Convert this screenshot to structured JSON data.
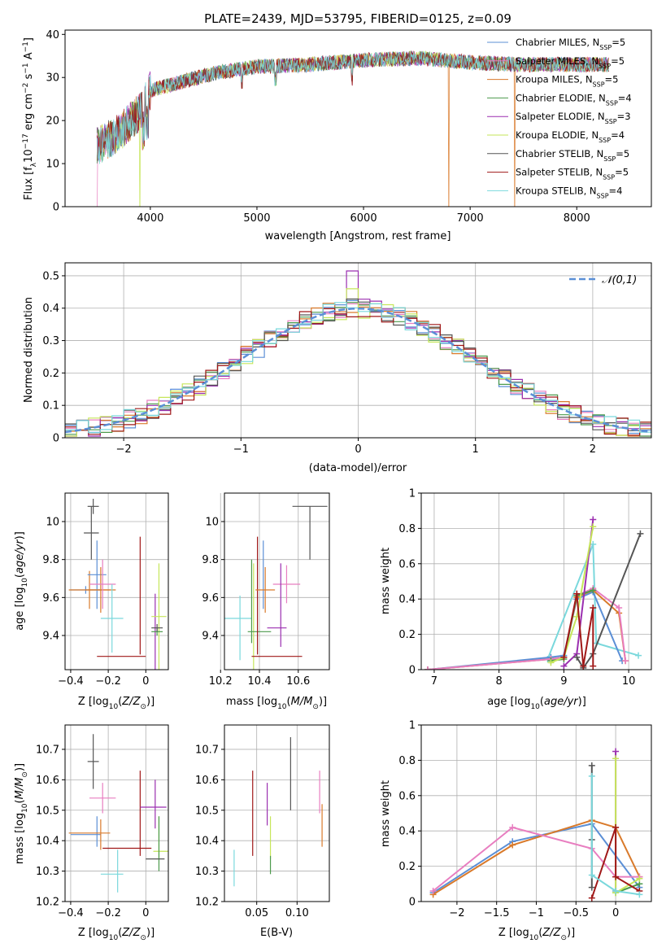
{
  "figure_title": "PLATE=2439, MJD=53795, FIBERID=0125, z=0.09",
  "colors": {
    "Chabrier MILES": "#5b8fd6",
    "Salpeter MILES": "#e87ec0",
    "Kroupa MILES": "#d97a2b",
    "Chabrier ELODIE": "#4c9a4c",
    "Salpeter ELODIE": "#9b2fb0",
    "Kroupa ELODIE": "#c6e65a",
    "Chabrier STELIB": "#555555",
    "Salpeter STELIB": "#a01818",
    "Kroupa STELIB": "#7ad8dc"
  },
  "chart_data": [
    {
      "id": "spectrum",
      "type": "line",
      "xlabel": "wavelength [Angstrom, rest frame]",
      "ylabel": "Flux [f_λ10^-17 erg cm^-2 s^-1 A^-1]",
      "xlim": [
        3200,
        8700
      ],
      "ylim": [
        0,
        41
      ],
      "xticks": [
        4000,
        5000,
        6000,
        7000,
        8000
      ],
      "yticks": [
        0,
        10,
        20,
        30,
        40
      ],
      "legend_position": "right",
      "series": [
        {
          "name": "Chabrier MILES, N_SSP=5",
          "base": "Chabrier MILES"
        },
        {
          "name": "Salpeter MILES, N_SSP=5",
          "base": "Salpeter MILES"
        },
        {
          "name": "Kroupa MILES, N_SSP=5",
          "base": "Kroupa MILES"
        },
        {
          "name": "Chabrier ELODIE, N_SSP=4",
          "base": "Chabrier ELODIE"
        },
        {
          "name": "Salpeter ELODIE, N_SSP=3",
          "base": "Salpeter ELODIE"
        },
        {
          "name": "Kroupa ELODIE, N_SSP=4",
          "base": "Kroupa ELODIE"
        },
        {
          "name": "Chabrier STELIB, N_SSP=5",
          "base": "Chabrier STELIB"
        },
        {
          "name": "Salpeter STELIB, N_SSP=5",
          "base": "Salpeter STELIB"
        },
        {
          "name": "Kroupa STELIB, N_SSP=4",
          "base": "Kroupa STELIB"
        }
      ],
      "continuum": [
        [
          3500,
          14
        ],
        [
          3700,
          17
        ],
        [
          3900,
          22
        ],
        [
          4000,
          27
        ],
        [
          4300,
          29
        ],
        [
          4600,
          31
        ],
        [
          5000,
          32.5
        ],
        [
          5500,
          33
        ],
        [
          6000,
          34
        ],
        [
          6500,
          34.5
        ],
        [
          7000,
          33.5
        ],
        [
          7500,
          33
        ],
        [
          8000,
          33
        ],
        [
          8300,
          33
        ]
      ],
      "dropouts": [
        {
          "series": "Salpeter MILES",
          "x": 3500
        },
        {
          "series": "Kroupa ELODIE",
          "x": 3900
        },
        {
          "series": "Kroupa MILES",
          "x": 6800
        },
        {
          "series": "Kroupa MILES",
          "x": 7420
        }
      ]
    },
    {
      "id": "residuals",
      "type": "histogram",
      "xlabel": "(data-model)/error",
      "ylabel": "Normed distribution",
      "xlim": [
        -2.5,
        2.5
      ],
      "ylim": [
        0,
        0.54
      ],
      "xticks": [
        -2,
        -1,
        0,
        1,
        2
      ],
      "yticks": [
        0.0,
        0.1,
        0.2,
        0.3,
        0.4,
        0.5
      ],
      "bin_width": 0.1,
      "reference": {
        "name": "𝒩(0,1)",
        "mean": 0,
        "sigma": 1
      },
      "legend_position": "top-right",
      "peak_values": {
        "Salpeter ELODIE": 0.515,
        "Kroupa ELODIE": 0.46
      }
    },
    {
      "id": "age_vs_Z",
      "type": "errorbar",
      "xlabel": "Z [log10(Z/Z⊙)]",
      "ylabel": "age [log10(age/yr)]",
      "xlim": [
        -0.43,
        0.12
      ],
      "ylim": [
        9.22,
        10.15
      ],
      "xticks": [
        -0.4,
        -0.2,
        0.0
      ],
      "yticks": [
        9.4,
        9.6,
        9.8,
        10.0
      ],
      "points": [
        {
          "series": "Chabrier STELIB",
          "x": -0.28,
          "xerr": 0.03,
          "y": 10.08,
          "yerr": 0.04
        },
        {
          "series": "Chabrier MILES",
          "x": -0.32,
          "xerr": 0.08,
          "y": 9.64,
          "yerr": 0.02
        },
        {
          "series": "Kroupa MILES",
          "x": -0.3,
          "xerr": 0.11,
          "y": 9.64,
          "yerr": 0.1
        },
        {
          "series": "Chabrier MILES",
          "x": -0.26,
          "xerr": 0.05,
          "y": 9.72,
          "yerr": 0.18
        },
        {
          "series": "Kroupa MILES",
          "x": -0.24,
          "xerr": 0.08,
          "y": 9.64,
          "yerr": 0.12
        },
        {
          "series": "Salpeter MILES",
          "x": -0.23,
          "xerr": 0.07,
          "y": 9.67,
          "yerr": 0.13
        },
        {
          "series": "Chabrier STELIB",
          "x": -0.29,
          "xerr": 0.04,
          "y": 9.94,
          "yerr": 0.14
        },
        {
          "series": "Kroupa STELIB",
          "x": -0.18,
          "xerr": 0.06,
          "y": 9.49,
          "yerr": 0.18
        },
        {
          "series": "Salpeter STELIB",
          "x": -0.13,
          "xerr": 0.13,
          "y": 9.29,
          "yerr": 0.0
        },
        {
          "series": "Salpeter STELIB",
          "x": -0.03,
          "xerr": 0.0,
          "y": 9.61,
          "yerr": 0.31
        },
        {
          "series": "Salpeter ELODIE",
          "x": 0.05,
          "xerr": 0.0,
          "y": 9.4,
          "yerr": 0.22
        },
        {
          "series": "Kroupa ELODIE",
          "x": 0.07,
          "xerr": 0.04,
          "y": 9.5,
          "yerr": 0.28
        },
        {
          "series": "Chabrier ELODIE",
          "x": 0.06,
          "xerr": 0.03,
          "y": 9.42,
          "yerr": 0.02
        },
        {
          "series": "Chabrier STELIB",
          "x": 0.06,
          "xerr": 0.03,
          "y": 9.44,
          "yerr": 0.02
        }
      ]
    },
    {
      "id": "age_vs_mass",
      "type": "errorbar",
      "xlabel": "mass [log10(M/M⊙)]",
      "xlim": [
        10.22,
        10.76
      ],
      "ylim": [
        9.22,
        10.15
      ],
      "xticks": [
        10.2,
        10.4,
        10.6
      ],
      "yticks": [
        9.4,
        9.6,
        9.8,
        10.0
      ],
      "points": [
        {
          "series": "Chabrier STELIB",
          "x": 10.66,
          "xerr": 0.09,
          "y": 10.08,
          "yerr": 0.0
        },
        {
          "series": "Chabrier STELIB",
          "x": 10.66,
          "xerr": 0.0,
          "y": 9.94,
          "yerr": 0.14
        },
        {
          "series": "Kroupa STELIB",
          "x": 10.29,
          "xerr": 0.07,
          "y": 9.49,
          "yerr": 0.0
        },
        {
          "series": "Kroupa STELIB",
          "x": 10.3,
          "xerr": 0.0,
          "y": 9.44,
          "yerr": 0.17
        },
        {
          "series": "Chabrier ELODIE",
          "x": 10.36,
          "xerr": 0.0,
          "y": 9.58,
          "yerr": 0.22
        },
        {
          "series": "Kroupa ELODIE",
          "x": 10.37,
          "xerr": 0.0,
          "y": 9.5,
          "yerr": 0.28
        },
        {
          "series": "Chabrier ELODIE",
          "x": 10.4,
          "xerr": 0.06,
          "y": 9.42,
          "yerr": 0.0
        },
        {
          "series": "Salpeter STELIB",
          "x": 10.39,
          "xerr": 0.0,
          "y": 9.61,
          "yerr": 0.31
        },
        {
          "series": "Salpeter STELIB",
          "x": 10.49,
          "xerr": 0.13,
          "y": 9.29,
          "yerr": 0.0
        },
        {
          "series": "Chabrier MILES",
          "x": 10.42,
          "xerr": 0.0,
          "y": 9.72,
          "yerr": 0.18
        },
        {
          "series": "Kroupa MILES",
          "x": 10.43,
          "xerr": 0.05,
          "y": 9.64,
          "yerr": 0.12
        },
        {
          "series": "Salpeter MILES",
          "x": 10.54,
          "xerr": 0.07,
          "y": 9.67,
          "yerr": 0.1
        },
        {
          "series": "Salpeter ELODIE",
          "x": 10.51,
          "xerr": 0.0,
          "y": 9.56,
          "yerr": 0.22
        },
        {
          "series": "Salpeter ELODIE",
          "x": 10.49,
          "xerr": 0.05,
          "y": 9.44,
          "yerr": 0.0
        }
      ]
    },
    {
      "id": "weight_vs_age",
      "type": "line",
      "xlabel": "age [log10(age/yr)]",
      "ylabel": "mass weight",
      "xlim": [
        6.8,
        10.35
      ],
      "ylim": [
        0,
        1.0
      ],
      "xticks": [
        7,
        8,
        9,
        10
      ],
      "yticks": [
        0.0,
        0.2,
        0.4,
        0.6,
        0.8,
        1.0
      ],
      "series": [
        {
          "series": "Kroupa STELIB",
          "x": [
            6.9,
            8.75,
            9.45,
            9.5,
            10.15
          ],
          "y": [
            0.0,
            0.06,
            0.71,
            0.15,
            0.08
          ]
        },
        {
          "series": "Chabrier MILES",
          "x": [
            6.9,
            8.8,
            9.0,
            9.2,
            9.45,
            9.9
          ],
          "y": [
            0.0,
            0.07,
            0.08,
            0.4,
            0.44,
            0.05
          ]
        },
        {
          "series": "Kroupa MILES",
          "x": [
            6.9,
            8.8,
            9.0,
            9.2,
            9.45,
            9.85,
            9.95
          ],
          "y": [
            0.0,
            0.06,
            0.07,
            0.41,
            0.45,
            0.32,
            0.05
          ]
        },
        {
          "series": "Salpeter MILES",
          "x": [
            6.9,
            8.8,
            9.0,
            9.2,
            9.45,
            9.85,
            9.95
          ],
          "y": [
            0.0,
            0.06,
            0.07,
            0.42,
            0.46,
            0.35,
            0.05
          ]
        },
        {
          "series": "Chabrier ELODIE",
          "x": [
            8.8,
            9.0,
            9.2,
            9.45
          ],
          "y": [
            0.05,
            0.06,
            0.42,
            0.45
          ]
        },
        {
          "series": "Salpeter ELODIE",
          "x": [
            9.0,
            9.2,
            9.45
          ],
          "y": [
            0.02,
            0.09,
            0.85
          ]
        },
        {
          "series": "Kroupa ELODIE",
          "x": [
            8.8,
            9.0,
            9.2,
            9.45
          ],
          "y": [
            0.04,
            0.07,
            0.3,
            0.81
          ]
        },
        {
          "series": "Chabrier STELIB",
          "x": [
            9.2,
            9.3,
            9.45,
            10.18
          ],
          "y": [
            0.07,
            0.01,
            0.09,
            0.77
          ]
        },
        {
          "series": "Salpeter STELIB",
          "x": [
            9.0,
            9.2,
            9.3,
            9.45,
            9.45
          ],
          "y": [
            0.07,
            0.43,
            0.02,
            0.35,
            0.02
          ]
        }
      ]
    },
    {
      "id": "mass_vs_Z",
      "type": "errorbar",
      "xlabel": "Z [log10(Z/Z⊙)]",
      "ylabel": "mass [log10(M/M⊙)]",
      "xlim": [
        -0.43,
        0.12
      ],
      "ylim": [
        10.2,
        10.78
      ],
      "xticks": [
        -0.4,
        -0.2,
        0.0
      ],
      "yticks": [
        10.2,
        10.3,
        10.4,
        10.5,
        10.6,
        10.7
      ],
      "points": [
        {
          "series": "Chabrier STELIB",
          "x": -0.28,
          "xerr": 0.03,
          "y": 10.66,
          "yerr": 0.09
        },
        {
          "series": "Salpeter MILES",
          "x": -0.23,
          "xerr": 0.07,
          "y": 10.54,
          "yerr": 0.05
        },
        {
          "series": "Chabrier MILES",
          "x": -0.32,
          "xerr": 0.08,
          "y": 10.42,
          "yerr": 0.0
        },
        {
          "series": "Chabrier MILES",
          "x": -0.26,
          "xerr": 0.0,
          "y": 10.43,
          "yerr": 0.05
        },
        {
          "series": "Kroupa MILES",
          "x": -0.3,
          "xerr": 0.11,
          "y": 10.425,
          "yerr": 0.0
        },
        {
          "series": "Kroupa MILES",
          "x": -0.24,
          "xerr": 0.0,
          "y": 10.42,
          "yerr": 0.05
        },
        {
          "series": "Kroupa STELIB",
          "x": -0.18,
          "xerr": 0.06,
          "y": 10.29,
          "yerr": 0.0
        },
        {
          "series": "Kroupa STELIB",
          "x": -0.15,
          "xerr": 0.0,
          "y": 10.3,
          "yerr": 0.07
        },
        {
          "series": "Salpeter STELIB",
          "x": -0.1,
          "xerr": 0.13,
          "y": 10.375,
          "yerr": 0.0
        },
        {
          "series": "Salpeter STELIB",
          "x": -0.03,
          "xerr": 0.0,
          "y": 10.49,
          "yerr": 0.14
        },
        {
          "series": "Salpeter ELODIE",
          "x": 0.04,
          "xerr": 0.07,
          "y": 10.51,
          "yerr": 0.0
        },
        {
          "series": "Salpeter ELODIE",
          "x": 0.05,
          "xerr": 0.0,
          "y": 10.52,
          "yerr": 0.08
        },
        {
          "series": "Kroupa ELODIE",
          "x": 0.08,
          "xerr": 0.04,
          "y": 10.365,
          "yerr": 0.0
        },
        {
          "series": "Kroupa ELODIE",
          "x": 0.07,
          "xerr": 0.0,
          "y": 10.41,
          "yerr": 0.07
        },
        {
          "series": "Chabrier ELODIE",
          "x": 0.07,
          "xerr": 0.0,
          "y": 10.39,
          "yerr": 0.09
        },
        {
          "series": "Chabrier STELIB",
          "x": 0.05,
          "xerr": 0.05,
          "y": 10.34,
          "yerr": 0.0
        }
      ]
    },
    {
      "id": "mass_vs_EBV",
      "type": "errorbar",
      "xlabel": "E(B-V)",
      "xlim": [
        0.01,
        0.14
      ],
      "ylim": [
        10.2,
        10.78
      ],
      "xticks": [
        0.05,
        0.1
      ],
      "yticks": [
        10.2,
        10.3,
        10.4,
        10.5,
        10.6,
        10.7
      ],
      "points": [
        {
          "series": "Kroupa STELIB",
          "x": 0.022,
          "y": 10.31,
          "yerr": 0.06
        },
        {
          "series": "Salpeter STELIB",
          "x": 0.045,
          "y": 10.49,
          "yerr": 0.14
        },
        {
          "series": "Salpeter ELODIE",
          "x": 0.063,
          "y": 10.52,
          "yerr": 0.07
        },
        {
          "series": "Kroupa ELODIE",
          "x": 0.067,
          "y": 10.41,
          "yerr": 0.07
        },
        {
          "series": "Chabrier ELODIE",
          "x": 0.067,
          "y": 10.32,
          "yerr": 0.03
        },
        {
          "series": "Chabrier STELIB",
          "x": 0.092,
          "y": 10.62,
          "yerr": 0.12
        },
        {
          "series": "Salpeter MILES",
          "x": 0.128,
          "y": 10.56,
          "yerr": 0.07
        },
        {
          "series": "Kroupa MILES",
          "x": 0.131,
          "y": 10.45,
          "yerr": 0.07
        }
      ]
    },
    {
      "id": "weight_vs_Z",
      "type": "line",
      "xlabel": "Z [log10(Z/Z⊙)]",
      "ylabel": "mass weight",
      "xlim": [
        -2.45,
        0.45
      ],
      "ylim": [
        0,
        1.0
      ],
      "xticks": [
        -2.0,
        -1.5,
        -1.0,
        -0.5,
        0.0
      ],
      "yticks": [
        0.0,
        0.2,
        0.4,
        0.6,
        0.8,
        1.0
      ],
      "series": [
        {
          "series": "Chabrier MILES",
          "x": [
            -2.3,
            -1.3,
            -0.3,
            0.3
          ],
          "y": [
            0.05,
            0.34,
            0.44,
            0.08
          ]
        },
        {
          "series": "Kroupa MILES",
          "x": [
            -2.3,
            -1.3,
            -0.3,
            0.0,
            0.3
          ],
          "y": [
            0.04,
            0.32,
            0.46,
            0.42,
            0.14
          ]
        },
        {
          "series": "Salpeter MILES",
          "x": [
            -2.3,
            -1.3,
            -0.3,
            0.0,
            0.3
          ],
          "y": [
            0.06,
            0.42,
            0.3,
            0.14,
            0.14
          ]
        },
        {
          "series": "Chabrier ELODIE",
          "x": [
            0.0,
            0.3
          ],
          "y": [
            0.05,
            0.1
          ]
        },
        {
          "series": "Salpeter ELODIE",
          "x": [
            0.0,
            0.0
          ],
          "y": [
            0.85,
            0.06
          ]
        },
        {
          "series": "Kroupa ELODIE",
          "x": [
            0.0,
            0.0,
            0.3
          ],
          "y": [
            0.81,
            0.05,
            0.13
          ]
        },
        {
          "series": "Chabrier STELIB",
          "x": [
            -0.3,
            -0.3,
            -0.3
          ],
          "y": [
            0.77,
            0.35,
            0.08
          ]
        },
        {
          "series": "Salpeter STELIB",
          "x": [
            -0.3,
            0.0,
            0.0,
            0.3
          ],
          "y": [
            0.02,
            0.42,
            0.14,
            0.06
          ]
        },
        {
          "series": "Kroupa STELIB",
          "x": [
            -0.3,
            -0.3,
            0.0,
            0.3
          ],
          "y": [
            0.71,
            0.15,
            0.06,
            0.04
          ]
        }
      ]
    }
  ]
}
